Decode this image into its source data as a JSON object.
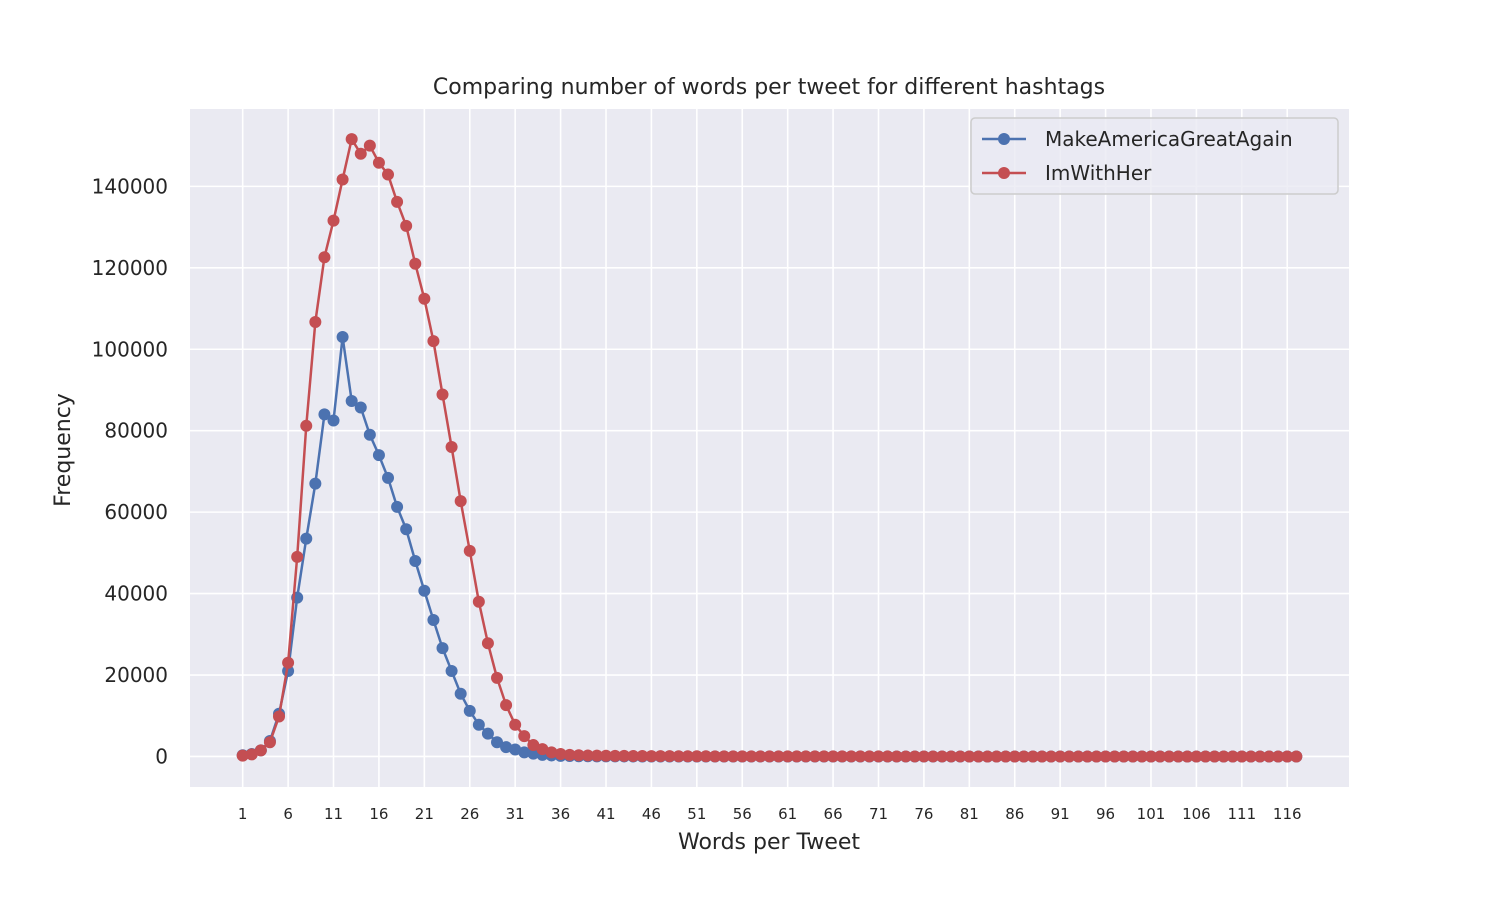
{
  "chart_data": {
    "type": "line",
    "title": "Comparing number of words per tweet for different hashtags",
    "xlabel": "Words per Tweet",
    "ylabel": "Frequency",
    "xlim": [
      -4.8,
      122.8
    ],
    "ylim": [
      -7500,
      159000
    ],
    "xticks": [
      1,
      6,
      11,
      16,
      21,
      26,
      31,
      36,
      41,
      46,
      51,
      56,
      61,
      66,
      71,
      76,
      81,
      86,
      91,
      96,
      101,
      106,
      111,
      116
    ],
    "yticks": [
      0,
      20000,
      40000,
      60000,
      80000,
      100000,
      120000,
      140000
    ],
    "grid": true,
    "legend_position": "top-right",
    "x_start": 1,
    "x_end": 117,
    "series": [
      {
        "name": "MakeAmericaGreatAgain",
        "color": "#4c72b0",
        "values": [
          300,
          600,
          1500,
          3800,
          10500,
          21000,
          39000,
          53500,
          67000,
          84000,
          82500,
          103000,
          87300,
          85700,
          79000,
          74000,
          68400,
          61300,
          55800,
          48000,
          40700,
          33500,
          26600,
          21000,
          15400,
          11200,
          7800,
          5600,
          3500,
          2300,
          1700,
          1000,
          700,
          400,
          250,
          150,
          100,
          60,
          40,
          25,
          15,
          10,
          5,
          3,
          2,
          1,
          1,
          1,
          0,
          0,
          0,
          0,
          0,
          0,
          0,
          0,
          0,
          0,
          0,
          0,
          0,
          0,
          0,
          0,
          0,
          0,
          0,
          0,
          0,
          0,
          0,
          0,
          0,
          0,
          0,
          0,
          0,
          0,
          0,
          0,
          0,
          0,
          0,
          0,
          0,
          0,
          0,
          0,
          0,
          0,
          0,
          0,
          0,
          0,
          0,
          0,
          0,
          0,
          0,
          0,
          0,
          0,
          0,
          0,
          0,
          0,
          0,
          0,
          0,
          0,
          0,
          0,
          0,
          0,
          0,
          0,
          0
        ]
      },
      {
        "name": "ImWithHer",
        "color": "#c44e52",
        "values": [
          200,
          500,
          1500,
          3500,
          9800,
          23000,
          49000,
          81200,
          106700,
          122600,
          131600,
          141700,
          151600,
          148000,
          150000,
          145800,
          142900,
          136200,
          130300,
          121000,
          112400,
          102000,
          88900,
          76000,
          62700,
          50500,
          38000,
          27800,
          19300,
          12600,
          7800,
          5000,
          2800,
          1800,
          1000,
          600,
          400,
          300,
          250,
          200,
          180,
          150,
          130,
          110,
          100,
          90,
          80,
          70,
          60,
          50,
          45,
          40,
          35,
          30,
          28,
          25,
          22,
          20,
          18,
          16,
          15,
          14,
          13,
          12,
          11,
          10,
          9,
          9,
          8,
          8,
          7,
          7,
          6,
          6,
          5,
          5,
          5,
          4,
          4,
          4,
          3,
          3,
          3,
          3,
          2,
          2,
          2,
          2,
          2,
          2,
          2,
          1,
          1,
          1,
          1,
          1,
          1,
          1,
          1,
          1,
          1,
          1,
          1,
          1,
          1,
          1,
          1,
          1,
          1,
          1,
          1,
          1,
          1,
          1,
          1,
          1,
          1
        ]
      }
    ]
  }
}
